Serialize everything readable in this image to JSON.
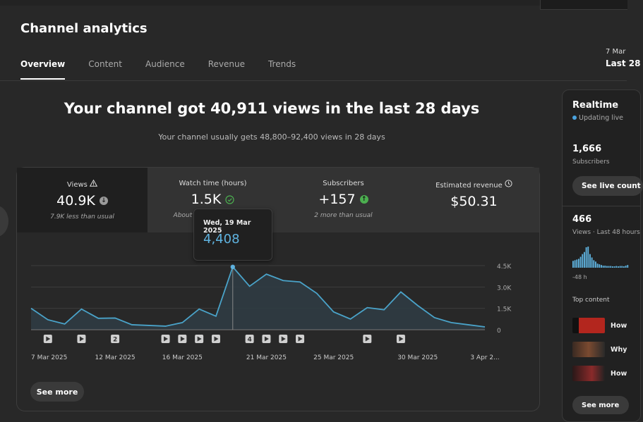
{
  "header": {
    "title": "Channel analytics",
    "tabs": [
      "Overview",
      "Content",
      "Audience",
      "Revenue",
      "Trends"
    ],
    "date_range_start": "7 Mar",
    "date_range_label": "Last 28"
  },
  "summary": {
    "headline": "Your channel got 40,911 views in the last 28 days",
    "subline": "Your channel usually gets 48,800–92,400 views in 28 days"
  },
  "metrics": [
    {
      "label": "Views",
      "value": "40.9K",
      "note": "7.9K less than usual",
      "label_icon": "warning-icon",
      "value_icon": "down-arrow-icon"
    },
    {
      "label": "Watch time (hours)",
      "value": "1.5K",
      "note": "About the same as usual",
      "value_icon": "check-circle-icon"
    },
    {
      "label": "Subscribers",
      "value": "+157",
      "note": "2 more than usual",
      "value_icon": "up-arrow-icon"
    },
    {
      "label": "Estimated revenue",
      "value": "$50.31",
      "note": "",
      "label_icon": "clock-icon"
    }
  ],
  "tooltip": {
    "date": "Wed, 19 Mar 2025",
    "value": "4,408"
  },
  "chart_data": {
    "type": "area",
    "title": "Views",
    "x": [
      "7 Mar",
      "8 Mar",
      "9 Mar",
      "10 Mar",
      "11 Mar",
      "12 Mar",
      "13 Mar",
      "14 Mar",
      "15 Mar",
      "16 Mar",
      "17 Mar",
      "18 Mar",
      "19 Mar",
      "20 Mar",
      "21 Mar",
      "22 Mar",
      "23 Mar",
      "24 Mar",
      "25 Mar",
      "26 Mar",
      "27 Mar",
      "28 Mar",
      "29 Mar",
      "30 Mar",
      "31 Mar",
      "1 Apr",
      "2 Apr",
      "3 Apr"
    ],
    "values": [
      1500,
      700,
      400,
      1450,
      800,
      820,
      350,
      300,
      250,
      500,
      1450,
      950,
      4408,
      3050,
      3900,
      3450,
      3350,
      2550,
      1250,
      750,
      1550,
      1400,
      2650,
      1700,
      850,
      500,
      350,
      200
    ],
    "ylim": [
      0,
      4500
    ],
    "yticks": [
      "4.5K",
      "3.0K",
      "1.5K",
      "0"
    ],
    "yticks_values": [
      4500,
      3000,
      1500,
      0
    ],
    "xtick_labels": [
      "7 Mar 2025",
      "12 Mar 2025",
      "16 Mar 2025",
      "21 Mar 2025",
      "25 Mar 2025",
      "30 Mar 2025",
      "3 Apr 2..."
    ],
    "xtick_index": [
      0,
      5,
      9,
      14,
      18,
      23,
      27
    ],
    "markers": [
      {
        "day": 1,
        "label": ""
      },
      {
        "day": 3,
        "label": ""
      },
      {
        "day": 5,
        "label": "2"
      },
      {
        "day": 8,
        "label": ""
      },
      {
        "day": 9,
        "label": ""
      },
      {
        "day": 10,
        "label": ""
      },
      {
        "day": 11,
        "label": ""
      },
      {
        "day": 13,
        "label": "4"
      },
      {
        "day": 14,
        "label": ""
      },
      {
        "day": 15,
        "label": ""
      },
      {
        "day": 16,
        "label": ""
      },
      {
        "day": 20,
        "label": ""
      },
      {
        "day": 22,
        "label": ""
      }
    ],
    "highlight_index": 12
  },
  "see_more_label": "See more",
  "realtime": {
    "title": "Realtime",
    "status": "Updating live",
    "subscribers_value": "1,666",
    "subscribers_label": "Subscribers",
    "live_count_button": "See live count",
    "views_value": "466",
    "views_label": "Views · Last 48 hours",
    "bars": [
      20,
      22,
      24,
      26,
      32,
      40,
      46,
      60,
      62,
      40,
      30,
      22,
      18,
      12,
      10,
      8,
      6,
      6,
      5,
      5,
      5,
      4,
      4,
      5,
      4,
      5,
      5,
      4,
      6,
      8
    ],
    "axis_label": "-48 h",
    "top_content_label": "Top content",
    "top_content": [
      {
        "title": "How",
        "thumb_color": "#b3261e"
      },
      {
        "title": "Why",
        "thumb_color": "#5a3c2c"
      },
      {
        "title": "How",
        "thumb_color": "#6b1e1e"
      }
    ],
    "see_more_label": "See more"
  },
  "colors": {
    "accent": "#5fb3e0",
    "line": "#4aa3c9",
    "area": "#2f3c44"
  }
}
